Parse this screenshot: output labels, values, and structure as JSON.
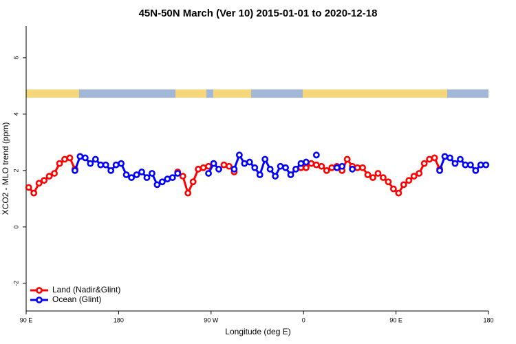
{
  "chart_data": {
    "type": "line",
    "title": "45N-50N March (Ver 10)   2015-01-01 to 2020-12-18",
    "x_label": "Longitude (deg E)",
    "y_label": "XCO2 - MLO trend (ppm)",
    "x": [
      92.5,
      97.5,
      102.5,
      107.5,
      112.5,
      117.5,
      122.5,
      127.5,
      132.5,
      137.5,
      142.5,
      147.5,
      152.5,
      157.5,
      162.5,
      167.5,
      172.5,
      177.5,
      182.5,
      187.5,
      192.5,
      197.5,
      202.5,
      207.5,
      212.5,
      217.5,
      222.5,
      227.5,
      232.5,
      237.5,
      242.5,
      247.5,
      252.5,
      257.5,
      262.5,
      267.5,
      272.5,
      277.5,
      282.5,
      287.5,
      292.5,
      297.5,
      302.5,
      307.5,
      312.5,
      317.5,
      322.5,
      327.5,
      332.5,
      337.5,
      342.5,
      347.5,
      352.5,
      357.5,
      362.5,
      367.5,
      372.5,
      377.5,
      382.5,
      387.5,
      392.5,
      397.5,
      402.5,
      407.5,
      412.5,
      417.5,
      422.5,
      427.5,
      432.5,
      437.5,
      442.5,
      447.5,
      452.5,
      457.5,
      462.5,
      467.5,
      472.5,
      477.5,
      482.5,
      487.5,
      492.5,
      497.5,
      502.5,
      507.5,
      512.5,
      517.5,
      522.5,
      527.5,
      532.5,
      537.5
    ],
    "series": [
      {
        "name": "Land (Nadir&Glint)",
        "color": "#ff0000",
        "values": [
          1.4,
          1.2,
          1.55,
          1.65,
          1.8,
          1.9,
          2.25,
          2.4,
          2.45,
          2.05,
          null,
          null,
          null,
          null,
          null,
          null,
          null,
          null,
          null,
          null,
          null,
          null,
          null,
          null,
          null,
          null,
          null,
          null,
          null,
          1.95,
          1.8,
          1.2,
          1.6,
          2.05,
          2.1,
          2.15,
          2.25,
          null,
          2.2,
          2.15,
          1.95,
          null,
          null,
          null,
          null,
          null,
          null,
          null,
          null,
          null,
          null,
          null,
          null,
          2.1,
          2.1,
          2.25,
          2.2,
          2.15,
          2.0,
          2.1,
          2.15,
          2.0,
          2.4,
          2.15,
          2.1,
          2.1,
          1.85,
          1.75,
          1.9,
          1.75,
          1.6,
          1.35,
          1.2,
          1.5,
          1.65,
          1.8,
          1.9,
          2.25,
          2.4,
          2.45,
          2.05,
          null,
          null,
          null,
          null,
          null,
          null,
          null,
          null,
          null
        ]
      },
      {
        "name": "Ocean (Glint)",
        "color": "#0000ff",
        "values": [
          null,
          null,
          null,
          null,
          null,
          null,
          null,
          null,
          null,
          2.0,
          2.5,
          2.45,
          2.25,
          2.4,
          2.2,
          2.2,
          2.0,
          2.2,
          2.25,
          1.85,
          1.75,
          1.85,
          1.95,
          1.75,
          1.9,
          1.5,
          1.6,
          1.7,
          1.75,
          1.9,
          null,
          null,
          null,
          null,
          null,
          1.9,
          2.25,
          2.05,
          null,
          null,
          2.05,
          2.55,
          2.25,
          2.3,
          2.1,
          1.85,
          2.4,
          2.05,
          1.8,
          2.15,
          2.1,
          1.85,
          2.05,
          2.25,
          2.3,
          null,
          2.55,
          null,
          null,
          null,
          2.1,
          2.15,
          null,
          2.05,
          null,
          null,
          null,
          null,
          null,
          null,
          null,
          null,
          null,
          null,
          null,
          null,
          null,
          null,
          null,
          null,
          2.0,
          2.5,
          2.45,
          2.25,
          2.4,
          2.2,
          2.2,
          2.0,
          2.2,
          2.2
        ]
      }
    ],
    "xlim": [
      90,
      540
    ],
    "ylim": [
      -2.98,
      7.12
    ],
    "xticks": [
      {
        "value": 90,
        "label": "90 E"
      },
      180,
      {
        "value": 270,
        "label": "90 W"
      },
      {
        "value": 360,
        "label": "0"
      },
      {
        "value": 450,
        "label": "90 E"
      },
      {
        "value": 540,
        "label": "180"
      }
    ],
    "yticks": [
      -2,
      0,
      2,
      4,
      6
    ],
    "legend": "bottom-left"
  }
}
